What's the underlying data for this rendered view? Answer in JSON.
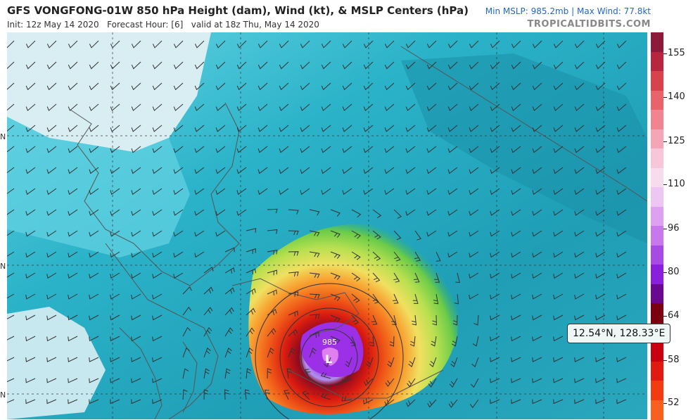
{
  "header": {
    "title": "GFS VONGFONG-01W 850 hPa Height (dam), Wind (kt), & MSLP Centers (hPa)",
    "init": "Init: 12z May 14 2020",
    "forecast_hour": "Forecast Hour: [6]",
    "valid": "valid at 18z Thu, May 14 2020",
    "min_mslp": "Min MSLP: 985.2mb",
    "max_wind": "Max Wind: 77.8kt",
    "site": "TROPICALTIDBITS.COM"
  },
  "map": {
    "center_label": "985",
    "low_marker": "L",
    "lat_marks": [
      "N",
      "N",
      "N"
    ]
  },
  "tooltip": {
    "text": "12.54°N, 128.33°E"
  },
  "colorbar": {
    "labels": [
      "155",
      "140",
      "125",
      "110",
      "96",
      "80",
      "64",
      "58",
      "52"
    ],
    "colors": [
      "#8c1a3a",
      "#b8253e",
      "#d8424a",
      "#e8636a",
      "#f08490",
      "#f4a6b6",
      "#f7c6d8",
      "#f7dcf0",
      "#eec6f4",
      "#dea0f0",
      "#c878ec",
      "#a84ae6",
      "#8a20dc",
      "#6a0890",
      "#7a0010",
      "#a00010",
      "#c80010",
      "#e01a10",
      "#f03c10",
      "#f86020"
    ]
  }
}
